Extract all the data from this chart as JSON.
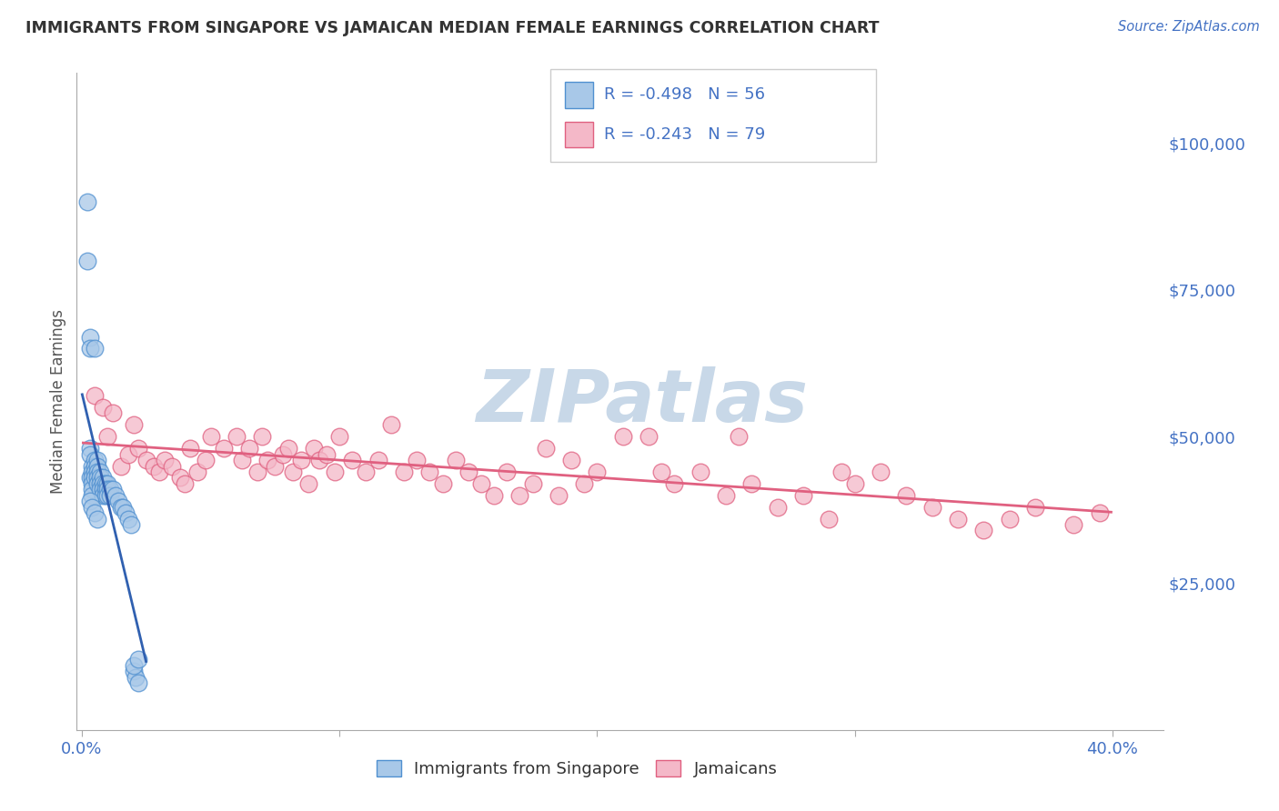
{
  "title": "IMMIGRANTS FROM SINGAPORE VS JAMAICAN MEDIAN FEMALE EARNINGS CORRELATION CHART",
  "source_text": "Source: ZipAtlas.com",
  "ylabel": "Median Female Earnings",
  "xlim": [
    -0.002,
    0.42
  ],
  "ylim": [
    0,
    112000
  ],
  "yticks": [
    0,
    25000,
    50000,
    75000,
    100000
  ],
  "ytick_labels": [
    "",
    "$25,000",
    "$50,000",
    "$75,000",
    "$100,000"
  ],
  "xticks": [
    0.0,
    0.1,
    0.2,
    0.3,
    0.4
  ],
  "xtick_labels": [
    "0.0%",
    "",
    "",
    "",
    "40.0%"
  ],
  "blue_R": -0.498,
  "blue_N": 56,
  "pink_R": -0.243,
  "pink_N": 79,
  "blue_color": "#a8c8e8",
  "pink_color": "#f4b8c8",
  "blue_edge_color": "#5090d0",
  "pink_edge_color": "#e06080",
  "blue_line_color": "#3060b0",
  "pink_line_color": "#e06080",
  "blue_scatter_x": [
    0.002,
    0.002,
    0.003,
    0.003,
    0.003,
    0.003,
    0.003,
    0.004,
    0.004,
    0.004,
    0.004,
    0.004,
    0.004,
    0.005,
    0.005,
    0.005,
    0.005,
    0.005,
    0.006,
    0.006,
    0.006,
    0.006,
    0.006,
    0.007,
    0.007,
    0.007,
    0.007,
    0.008,
    0.008,
    0.008,
    0.008,
    0.009,
    0.009,
    0.009,
    0.01,
    0.01,
    0.01,
    0.011,
    0.011,
    0.012,
    0.013,
    0.014,
    0.015,
    0.016,
    0.017,
    0.018,
    0.019,
    0.02,
    0.021,
    0.022,
    0.003,
    0.004,
    0.005,
    0.006,
    0.02,
    0.022
  ],
  "blue_scatter_y": [
    90000,
    80000,
    67000,
    65000,
    48000,
    47000,
    43000,
    45000,
    44000,
    43000,
    42000,
    41000,
    40000,
    65000,
    46000,
    45000,
    44000,
    43000,
    46000,
    45000,
    44000,
    43000,
    42000,
    44000,
    43000,
    42000,
    41000,
    43000,
    42000,
    41000,
    40000,
    42000,
    41000,
    40000,
    42000,
    41000,
    40000,
    41000,
    40000,
    41000,
    40000,
    39000,
    38000,
    38000,
    37000,
    36000,
    35000,
    10000,
    9000,
    8000,
    39000,
    38000,
    37000,
    36000,
    11000,
    12000
  ],
  "pink_scatter_x": [
    0.005,
    0.008,
    0.01,
    0.012,
    0.015,
    0.018,
    0.02,
    0.022,
    0.025,
    0.028,
    0.03,
    0.032,
    0.035,
    0.038,
    0.04,
    0.042,
    0.045,
    0.048,
    0.05,
    0.055,
    0.06,
    0.062,
    0.065,
    0.068,
    0.07,
    0.072,
    0.075,
    0.078,
    0.08,
    0.082,
    0.085,
    0.088,
    0.09,
    0.092,
    0.095,
    0.098,
    0.1,
    0.105,
    0.11,
    0.115,
    0.12,
    0.125,
    0.13,
    0.135,
    0.14,
    0.145,
    0.15,
    0.155,
    0.16,
    0.165,
    0.17,
    0.175,
    0.18,
    0.185,
    0.19,
    0.195,
    0.2,
    0.21,
    0.22,
    0.225,
    0.23,
    0.24,
    0.25,
    0.255,
    0.26,
    0.27,
    0.28,
    0.29,
    0.295,
    0.3,
    0.31,
    0.32,
    0.33,
    0.34,
    0.35,
    0.36,
    0.37,
    0.385,
    0.395
  ],
  "pink_scatter_y": [
    57000,
    55000,
    50000,
    54000,
    45000,
    47000,
    52000,
    48000,
    46000,
    45000,
    44000,
    46000,
    45000,
    43000,
    42000,
    48000,
    44000,
    46000,
    50000,
    48000,
    50000,
    46000,
    48000,
    44000,
    50000,
    46000,
    45000,
    47000,
    48000,
    44000,
    46000,
    42000,
    48000,
    46000,
    47000,
    44000,
    50000,
    46000,
    44000,
    46000,
    52000,
    44000,
    46000,
    44000,
    42000,
    46000,
    44000,
    42000,
    40000,
    44000,
    40000,
    42000,
    48000,
    40000,
    46000,
    42000,
    44000,
    50000,
    50000,
    44000,
    42000,
    44000,
    40000,
    50000,
    42000,
    38000,
    40000,
    36000,
    44000,
    42000,
    44000,
    40000,
    38000,
    36000,
    34000,
    36000,
    38000,
    35000,
    37000
  ],
  "watermark_text": "ZIPatlas",
  "watermark_color": "#c8d8e8",
  "background_color": "#ffffff",
  "grid_color": "#cccccc",
  "title_color": "#333333",
  "axis_color": "#4472c4",
  "tick_label_color": "#4472c4",
  "legend_text_color": "#4472c4",
  "ylabel_color": "#555555"
}
